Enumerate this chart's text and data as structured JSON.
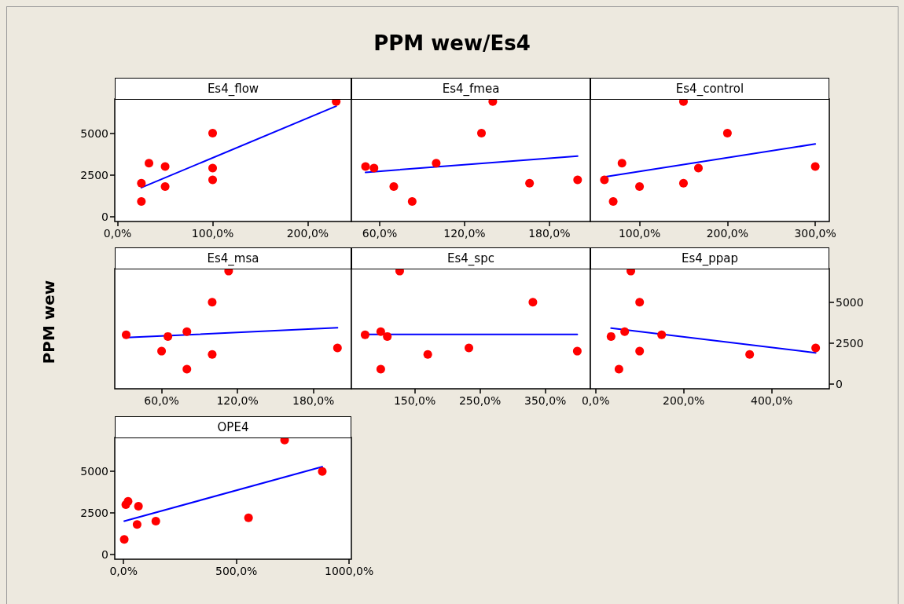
{
  "chart_data": [
    {
      "type": "scatter",
      "title": "Es4_flow",
      "annotations": [
        "PPM wew/Es4"
      ],
      "xlim": [
        -3,
        246
      ],
      "xticks": [
        {
          "value": 0,
          "label": "0,0%"
        },
        {
          "value": 100,
          "label": "100,0%"
        },
        {
          "value": 200,
          "label": "200,0%"
        }
      ],
      "ylim": [
        -300,
        7050
      ],
      "yticks": [
        0,
        2500,
        5000
      ],
      "grid": false,
      "series": [
        {
          "color": "#ff0000",
          "marker": "circle",
          "x": [
            230,
            100,
            33,
            50,
            100,
            100,
            25,
            50,
            25
          ],
          "values": [
            6900,
            5000,
            3200,
            3000,
            2900,
            2200,
            2000,
            1800,
            900
          ]
        },
        {
          "type": "line",
          "color": "#0000ff",
          "marker": "none",
          "line_style": "solid",
          "x": [
            25,
            230
          ],
          "values": [
            1730,
            6620
          ]
        }
      ]
    },
    {
      "type": "scatter",
      "title": "Es4_fmea",
      "tick_labels": "x",
      "xlim": [
        40,
        209
      ],
      "xticks": [
        {
          "value": 60,
          "label": "60,0%"
        },
        {
          "value": 120,
          "label": "120,0%"
        },
        {
          "value": 180,
          "label": "180,0%"
        }
      ],
      "ylim": [
        -300,
        7050
      ],
      "yticks": [
        0,
        2500,
        5000
      ],
      "grid": false,
      "series": [
        {
          "color": "#ff0000",
          "marker": "circle",
          "x": [
            140,
            132,
            100,
            50,
            56,
            200,
            166,
            70,
            83
          ],
          "values": [
            6900,
            5000,
            3200,
            3000,
            2900,
            2200,
            2000,
            1800,
            900
          ]
        },
        {
          "type": "line",
          "color": "#0000ff",
          "marker": "none",
          "line_style": "solid",
          "x": [
            50,
            200
          ],
          "values": [
            2650,
            3620
          ]
        }
      ]
    },
    {
      "type": "scatter",
      "title": "Es4_control",
      "tick_labels": "x",
      "xlim": [
        44,
        316
      ],
      "xticks": [
        {
          "value": 100,
          "label": "100,0%"
        },
        {
          "value": 200,
          "label": "200,0%"
        },
        {
          "value": 300,
          "label": "300,0%"
        }
      ],
      "ylim": [
        -300,
        7050
      ],
      "yticks": [
        0,
        2500,
        5000
      ],
      "grid": false,
      "series": [
        {
          "color": "#ff0000",
          "marker": "circle",
          "x": [
            150,
            200,
            80,
            300,
            167,
            60,
            150,
            100,
            70
          ],
          "values": [
            6900,
            5000,
            3200,
            3000,
            2900,
            2200,
            2000,
            1800,
            900
          ]
        },
        {
          "type": "line",
          "color": "#0000ff",
          "marker": "none",
          "line_style": "solid",
          "x": [
            60,
            300
          ],
          "values": [
            2370,
            4350
          ]
        }
      ]
    },
    {
      "type": "scatter",
      "title": "Es4_msa",
      "ylabel": "PPM wew",
      "tick_labels": "x",
      "xlim": [
        23,
        210
      ],
      "xticks": [
        {
          "value": 60,
          "label": "60,0%"
        },
        {
          "value": 120,
          "label": "120,0%"
        },
        {
          "value": 180,
          "label": "180,0%"
        }
      ],
      "ylim": [
        -300,
        7050
      ],
      "yticks": [
        0,
        2500,
        5000
      ],
      "grid": false,
      "series": [
        {
          "color": "#ff0000",
          "marker": "circle",
          "x": [
            113,
            100,
            80,
            32,
            65,
            199,
            60,
            100,
            80
          ],
          "values": [
            6900,
            5000,
            3200,
            3000,
            2900,
            2200,
            2000,
            1800,
            900
          ]
        },
        {
          "type": "line",
          "color": "#0000ff",
          "marker": "none",
          "line_style": "solid",
          "x": [
            32,
            199
          ],
          "values": [
            2830,
            3430
          ]
        }
      ]
    },
    {
      "type": "scatter",
      "title": "Es4_spc",
      "tick_labels": "x",
      "xlim": [
        53,
        419
      ],
      "xticks": [
        {
          "value": 150,
          "label": "150,0%"
        },
        {
          "value": 250,
          "label": "250,0%"
        },
        {
          "value": 350,
          "label": "350,0%"
        }
      ],
      "ylim": [
        -300,
        7050
      ],
      "yticks": [
        0,
        2500,
        5000
      ],
      "grid": false,
      "series": [
        {
          "color": "#ff0000",
          "marker": "circle",
          "x": [
            127,
            331,
            98,
            74,
            108,
            233,
            399,
            170,
            98
          ],
          "values": [
            6900,
            5000,
            3200,
            3000,
            2900,
            2200,
            2000,
            1800,
            900
          ]
        },
        {
          "type": "line",
          "color": "#0000ff",
          "marker": "none",
          "line_style": "solid",
          "x": [
            74,
            399
          ],
          "values": [
            3030,
            3030
          ]
        }
      ]
    },
    {
      "type": "scatter",
      "title": "Es4_ppap",
      "xlim": [
        -12,
        531
      ],
      "xticks": [
        {
          "value": 0,
          "label": "0,0%"
        },
        {
          "value": 200,
          "label": "200,0%"
        },
        {
          "value": 400,
          "label": "400,0%"
        }
      ],
      "ylim": [
        -300,
        7050
      ],
      "yticks": [
        0,
        2500,
        5000
      ],
      "grid": false,
      "series": [
        {
          "color": "#ff0000",
          "marker": "circle",
          "x": [
            80,
            100,
            66,
            150,
            35,
            500,
            100,
            350,
            53
          ],
          "values": [
            6900,
            5000,
            3200,
            3000,
            2900,
            2200,
            2000,
            1800,
            900
          ]
        },
        {
          "type": "line",
          "color": "#0000ff",
          "marker": "none",
          "line_style": "solid",
          "x": [
            35,
            500
          ],
          "values": [
            3410,
            1900
          ]
        }
      ]
    },
    {
      "type": "scatter",
      "title": "OPE4",
      "xlim": [
        -39,
        1010
      ],
      "xticks": [
        {
          "value": 0,
          "label": "0,0%"
        },
        {
          "value": 500,
          "label": "500,0%"
        },
        {
          "value": 1000,
          "label": "1000,0%"
        }
      ],
      "ylim": [
        -300,
        7050
      ],
      "yticks": [
        0,
        2500,
        5000
      ],
      "grid": false,
      "series": [
        {
          "color": "#ff0000",
          "marker": "circle",
          "x": [
            714,
            881,
            20,
            10,
            66,
            554,
            143,
            60,
            3
          ],
          "values": [
            6900,
            5000,
            3200,
            3000,
            2900,
            2200,
            2000,
            1800,
            900
          ]
        },
        {
          "type": "line",
          "color": "#0000ff",
          "marker": "none",
          "line_style": "solid",
          "x": [
            3,
            881
          ],
          "values": [
            2000,
            5280
          ]
        }
      ]
    }
  ]
}
